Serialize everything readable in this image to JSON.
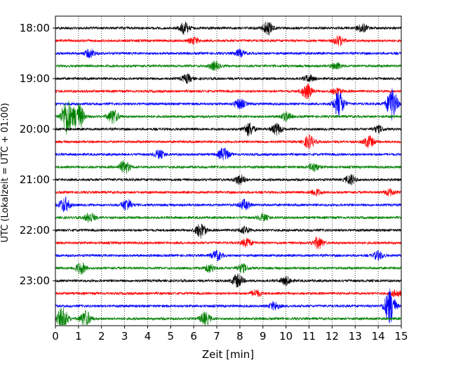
{
  "chart_data": {
    "type": "line",
    "title": "",
    "xlabel": "Zeit  [min]",
    "ylabel": "UTC (Lokalzeit = UTC + 01:00)",
    "xlim": [
      0,
      15
    ],
    "x_ticks": [
      "0",
      "1",
      "2",
      "3",
      "4",
      "5",
      "6",
      "7",
      "8",
      "9",
      "10",
      "11",
      "12",
      "13",
      "14",
      "15"
    ],
    "y_ticks": [
      "18:00",
      "19:00",
      "20:00",
      "21:00",
      "22:00",
      "23:00"
    ],
    "grid": "vertical dotted lines at each minute",
    "trace_interval_min": 15,
    "trace_colors": [
      "#000000",
      "#ff0000",
      "#0000ff",
      "#008000"
    ],
    "traces": [
      {
        "start": "18:00",
        "color": "#000000",
        "bursts": [
          {
            "x": 5.6,
            "amp": 0.7
          },
          {
            "x": 9.2,
            "amp": 0.8
          },
          {
            "x": 13.3,
            "amp": 0.5
          }
        ]
      },
      {
        "start": "18:15",
        "color": "#ff0000",
        "bursts": [
          {
            "x": 6.0,
            "amp": 0.4
          },
          {
            "x": 12.3,
            "amp": 0.6
          }
        ]
      },
      {
        "start": "18:30",
        "color": "#0000ff",
        "bursts": [
          {
            "x": 1.5,
            "amp": 0.5
          },
          {
            "x": 8.0,
            "amp": 0.4
          }
        ]
      },
      {
        "start": "18:45",
        "color": "#008000",
        "bursts": [
          {
            "x": 6.9,
            "amp": 0.5
          },
          {
            "x": 12.2,
            "amp": 0.4
          }
        ]
      },
      {
        "start": "19:00",
        "color": "#000000",
        "bursts": [
          {
            "x": 5.7,
            "amp": 0.5
          },
          {
            "x": 11.0,
            "amp": 0.4
          }
        ]
      },
      {
        "start": "19:15",
        "color": "#ff0000",
        "bursts": [
          {
            "x": 10.9,
            "amp": 0.9
          },
          {
            "x": 12.2,
            "amp": 0.4
          }
        ]
      },
      {
        "start": "19:30",
        "color": "#0000ff",
        "bursts": [
          {
            "x": 8.0,
            "amp": 0.6
          },
          {
            "x": 12.3,
            "amp": 1.6
          },
          {
            "x": 14.6,
            "amp": 2.0
          }
        ]
      },
      {
        "start": "19:45",
        "color": "#008000",
        "bursts": [
          {
            "x": 0.5,
            "amp": 2.3
          },
          {
            "x": 1.0,
            "amp": 1.7
          },
          {
            "x": 2.5,
            "amp": 0.9
          },
          {
            "x": 10.0,
            "amp": 0.5
          }
        ]
      },
      {
        "start": "20:00",
        "color": "#000000",
        "bursts": [
          {
            "x": 8.4,
            "amp": 0.8
          },
          {
            "x": 9.6,
            "amp": 0.7
          },
          {
            "x": 14.0,
            "amp": 0.4
          }
        ]
      },
      {
        "start": "20:15",
        "color": "#ff0000",
        "bursts": [
          {
            "x": 11.0,
            "amp": 0.8
          },
          {
            "x": 13.6,
            "amp": 0.7
          }
        ]
      },
      {
        "start": "20:30",
        "color": "#0000ff",
        "bursts": [
          {
            "x": 4.5,
            "amp": 0.5
          },
          {
            "x": 7.3,
            "amp": 0.8
          }
        ]
      },
      {
        "start": "20:45",
        "color": "#008000",
        "bursts": [
          {
            "x": 3.0,
            "amp": 0.8
          },
          {
            "x": 11.2,
            "amp": 0.5
          }
        ]
      },
      {
        "start": "21:00",
        "color": "#000000",
        "bursts": [
          {
            "x": 8.0,
            "amp": 0.6
          },
          {
            "x": 12.8,
            "amp": 0.6
          }
        ]
      },
      {
        "start": "21:15",
        "color": "#ff0000",
        "bursts": [
          {
            "x": 11.3,
            "amp": 0.4
          },
          {
            "x": 14.5,
            "amp": 0.4
          }
        ]
      },
      {
        "start": "21:30",
        "color": "#0000ff",
        "bursts": [
          {
            "x": 0.4,
            "amp": 0.9
          },
          {
            "x": 3.1,
            "amp": 0.7
          },
          {
            "x": 8.2,
            "amp": 0.6
          }
        ]
      },
      {
        "start": "21:45",
        "color": "#008000",
        "bursts": [
          {
            "x": 1.5,
            "amp": 0.6
          },
          {
            "x": 9.0,
            "amp": 0.4
          }
        ]
      },
      {
        "start": "22:00",
        "color": "#000000",
        "bursts": [
          {
            "x": 6.3,
            "amp": 0.9
          },
          {
            "x": 8.2,
            "amp": 0.4
          }
        ]
      },
      {
        "start": "22:15",
        "color": "#ff0000",
        "bursts": [
          {
            "x": 8.3,
            "amp": 0.5
          },
          {
            "x": 11.4,
            "amp": 0.7
          }
        ]
      },
      {
        "start": "22:30",
        "color": "#0000ff",
        "bursts": [
          {
            "x": 7.0,
            "amp": 0.6
          },
          {
            "x": 14.0,
            "amp": 0.5
          }
        ]
      },
      {
        "start": "22:45",
        "color": "#008000",
        "bursts": [
          {
            "x": 1.1,
            "amp": 0.7
          },
          {
            "x": 6.7,
            "amp": 0.5
          },
          {
            "x": 8.1,
            "amp": 0.5
          }
        ]
      },
      {
        "start": "23:00",
        "color": "#000000",
        "bursts": [
          {
            "x": 7.9,
            "amp": 0.8
          },
          {
            "x": 10.0,
            "amp": 0.5
          }
        ]
      },
      {
        "start": "23:15",
        "color": "#ff0000",
        "bursts": [
          {
            "x": 8.7,
            "amp": 0.4
          },
          {
            "x": 14.8,
            "amp": 0.4
          }
        ]
      },
      {
        "start": "23:30",
        "color": "#0000ff",
        "bursts": [
          {
            "x": 9.5,
            "amp": 0.5
          },
          {
            "x": 14.5,
            "amp": 2.2
          }
        ]
      },
      {
        "start": "23:45",
        "color": "#008000",
        "bursts": [
          {
            "x": 0.3,
            "amp": 1.5
          },
          {
            "x": 1.3,
            "amp": 1.0
          },
          {
            "x": 6.5,
            "amp": 0.8
          }
        ]
      }
    ]
  }
}
